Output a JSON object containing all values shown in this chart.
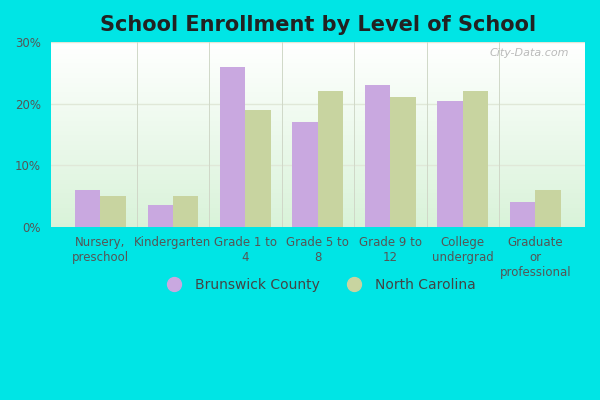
{
  "title": "School Enrollment by Level of School",
  "categories": [
    "Nursery,\npreschool",
    "Kindergarten",
    "Grade 1 to\n4",
    "Grade 5 to\n8",
    "Grade 9 to\n12",
    "College\nundergrad",
    "Graduate\nor\nprofessional"
  ],
  "brunswick": [
    6.0,
    3.5,
    26.0,
    17.0,
    23.0,
    20.5,
    4.0
  ],
  "north_carolina": [
    5.0,
    5.0,
    19.0,
    22.0,
    21.0,
    22.0,
    6.0
  ],
  "brunswick_color": "#c9a8e0",
  "nc_color": "#c8d4a0",
  "ylim": [
    0,
    30
  ],
  "yticks": [
    0,
    10,
    20,
    30
  ],
  "yticklabels": [
    "0%",
    "10%",
    "20%",
    "30%"
  ],
  "outer_bg": "#00e5e5",
  "legend_brunswick": "Brunswick County",
  "legend_nc": "North Carolina",
  "title_fontsize": 15,
  "axis_fontsize": 8.5,
  "legend_fontsize": 10,
  "watermark_text": "City-Data.com",
  "grid_color": "#e0e8d8",
  "separator_color": "#d0d8c8"
}
